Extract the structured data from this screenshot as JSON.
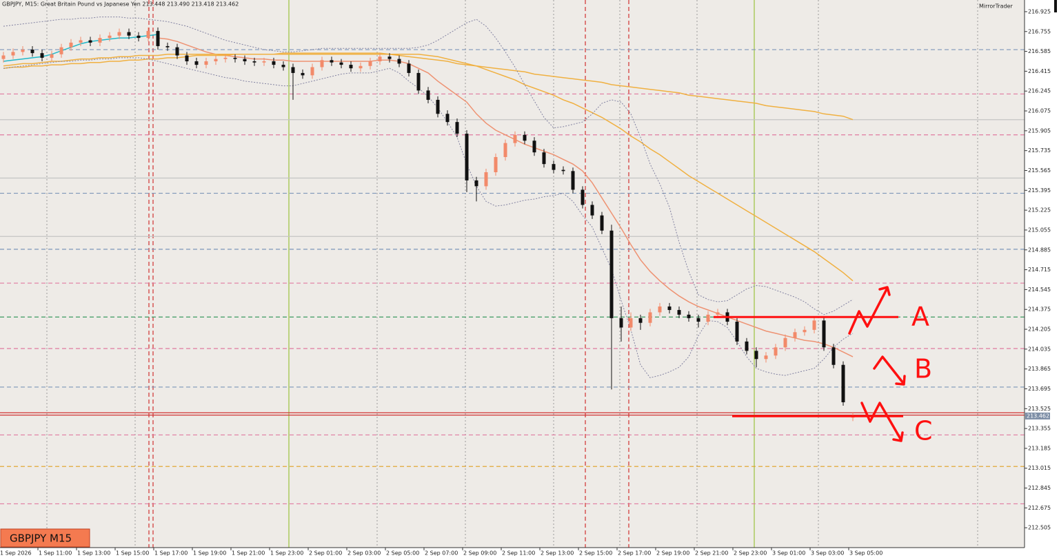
{
  "chart_data": {
    "type": "candlestick",
    "title": "GBPJPY, M15:  Great Britain Pound vs Japanese Yen  213.448 213.490 213.418 213.462",
    "brand": "MirrorTrader",
    "symbol_label": "GBPJPY M15",
    "categories": [
      "1 Sep 2026",
      null,
      null,
      null,
      "1 Sep 11:00",
      null,
      null,
      null,
      "1 Sep 13:00",
      null,
      null,
      null,
      "1 Sep 15:00",
      null,
      null,
      null,
      "1 Sep 17:00",
      null,
      null,
      null,
      "1 Sep 19:00",
      null,
      null,
      null,
      "1 Sep 21:00",
      null,
      null,
      null,
      "1 Sep 23:00",
      null,
      null,
      null,
      "2 Sep 01:00",
      null,
      null,
      null,
      "2 Sep 03:00",
      null,
      null,
      null,
      "2 Sep 05:00",
      null,
      null,
      null,
      "2 Sep 07:00",
      null,
      null,
      null,
      "2 Sep 09:00",
      null,
      null,
      null,
      "2 Sep 11:00",
      null,
      null,
      null,
      "2 Sep 13:00",
      null,
      null,
      null,
      "2 Sep 15:00",
      null,
      null,
      null,
      "2 Sep 17:00",
      null,
      null,
      null,
      "2 Sep 19:00",
      null,
      null,
      null,
      "2 Sep 21:00",
      null,
      null,
      null,
      "2 Sep 23:00",
      null,
      null,
      null,
      "3 Sep 01:00",
      null,
      null,
      null,
      "3 Sep 03:00",
      null,
      null,
      null,
      "3 Sep 05:00"
    ],
    "open": [
      216.52,
      216.55,
      216.58,
      216.6,
      216.57,
      216.53,
      216.56,
      216.62,
      216.66,
      216.68,
      216.66,
      216.7,
      216.72,
      216.75,
      216.72,
      216.7,
      216.76,
      216.63,
      216.62,
      216.55,
      216.5,
      216.47,
      216.5,
      216.52,
      216.53,
      216.52,
      216.5,
      216.49,
      216.5,
      216.47,
      216.45,
      216.4,
      216.38,
      216.45,
      216.51,
      216.49,
      216.47,
      216.44,
      216.46,
      216.5,
      216.54,
      216.52,
      216.48,
      216.4,
      216.25,
      216.17,
      216.05,
      215.98,
      215.88,
      215.48,
      215.43,
      215.55,
      215.68,
      215.8,
      215.87,
      215.82,
      215.72,
      215.62,
      215.57,
      215.56,
      215.4,
      215.27,
      215.18,
      215.05,
      214.3,
      214.22,
      214.3,
      214.26,
      214.35,
      214.4,
      214.37,
      214.33,
      214.3,
      214.27,
      214.33,
      214.35,
      214.27,
      214.1,
      214.02,
      213.95,
      213.98,
      214.05,
      214.13,
      214.18,
      214.2,
      214.28,
      214.05,
      213.9,
      213.448
    ],
    "high": [
      216.58,
      216.61,
      216.63,
      216.63,
      216.6,
      216.59,
      216.65,
      216.69,
      216.71,
      216.71,
      216.73,
      216.75,
      216.78,
      216.78,
      216.75,
      216.79,
      216.79,
      216.66,
      216.65,
      216.58,
      216.53,
      216.53,
      216.55,
      216.56,
      216.56,
      216.55,
      216.53,
      216.53,
      216.53,
      216.5,
      216.48,
      216.43,
      216.48,
      216.54,
      216.54,
      216.52,
      216.5,
      216.49,
      216.53,
      216.57,
      216.57,
      216.55,
      216.51,
      216.43,
      216.28,
      216.2,
      216.08,
      216.01,
      215.91,
      215.51,
      215.58,
      215.71,
      215.83,
      215.9,
      215.9,
      215.85,
      215.75,
      215.65,
      215.6,
      215.59,
      215.43,
      215.3,
      215.21,
      215.1,
      214.4,
      214.35,
      214.33,
      214.38,
      214.43,
      214.43,
      214.4,
      214.36,
      214.33,
      214.36,
      214.38,
      214.38,
      214.3,
      214.13,
      214.05,
      214.01,
      214.08,
      214.16,
      214.21,
      214.23,
      214.31,
      214.31,
      214.08,
      213.93,
      213.49
    ],
    "low": [
      216.49,
      216.52,
      216.55,
      216.54,
      216.5,
      216.5,
      216.53,
      216.59,
      216.63,
      216.63,
      216.63,
      216.67,
      216.69,
      216.69,
      216.67,
      216.67,
      216.6,
      216.59,
      216.52,
      216.47,
      216.44,
      216.44,
      216.47,
      216.49,
      216.49,
      216.47,
      216.46,
      216.46,
      216.44,
      216.42,
      216.17,
      216.35,
      216.35,
      216.42,
      216.46,
      216.44,
      216.41,
      216.41,
      216.43,
      216.47,
      216.49,
      216.45,
      216.37,
      216.22,
      216.14,
      216.02,
      215.95,
      215.85,
      215.38,
      215.3,
      215.4,
      215.52,
      215.65,
      215.77,
      215.79,
      215.69,
      215.59,
      215.54,
      215.53,
      215.37,
      215.24,
      215.15,
      215.02,
      213.69,
      214.1,
      214.19,
      214.2,
      214.23,
      214.32,
      214.34,
      214.3,
      214.27,
      214.22,
      214.24,
      214.3,
      214.24,
      214.07,
      213.99,
      213.88,
      213.92,
      213.95,
      214.02,
      214.1,
      214.15,
      214.17,
      214.02,
      213.87,
      213.55,
      213.418
    ],
    "close": [
      216.55,
      216.58,
      216.6,
      216.57,
      216.53,
      216.56,
      216.62,
      216.66,
      216.68,
      216.66,
      216.7,
      216.72,
      216.75,
      216.72,
      216.7,
      216.76,
      216.63,
      216.62,
      216.55,
      216.5,
      216.47,
      216.5,
      216.52,
      216.53,
      216.52,
      216.5,
      216.49,
      216.5,
      216.47,
      216.45,
      216.4,
      216.38,
      216.45,
      216.51,
      216.49,
      216.47,
      216.44,
      216.46,
      216.5,
      216.54,
      216.52,
      216.48,
      216.4,
      216.25,
      216.17,
      216.05,
      215.98,
      215.88,
      215.48,
      215.43,
      215.55,
      215.68,
      215.8,
      215.87,
      215.82,
      215.72,
      215.62,
      215.57,
      215.56,
      215.4,
      215.27,
      215.18,
      215.05,
      214.3,
      214.22,
      214.3,
      214.26,
      214.35,
      214.4,
      214.37,
      214.33,
      214.3,
      214.27,
      214.33,
      214.35,
      214.27,
      214.1,
      214.02,
      213.95,
      213.98,
      214.05,
      214.13,
      214.18,
      214.2,
      214.28,
      214.05,
      213.9,
      213.58,
      213.462
    ],
    "up_color": "#f28a6a",
    "down_color": "#111111",
    "overlays": [
      {
        "color": "#20b8c8",
        "style": "solid",
        "values": [
          216.5,
          216.51,
          216.52,
          216.53,
          216.54,
          216.56,
          216.59,
          216.62,
          216.65,
          216.67,
          216.68,
          216.69,
          216.7,
          216.7,
          216.71,
          216.72,
          216.73,
          null,
          null,
          null,
          null,
          null,
          null,
          null,
          null,
          null,
          null,
          null,
          null,
          null,
          null,
          null,
          null,
          null,
          null,
          null,
          null,
          null,
          null,
          null,
          null,
          null,
          null,
          null,
          null,
          null,
          null,
          null,
          null,
          null,
          null,
          null,
          null,
          null,
          null,
          null,
          null,
          null,
          null,
          null,
          null,
          null,
          null,
          null,
          null,
          null,
          null,
          null,
          null,
          null,
          null,
          null,
          null,
          null,
          null,
          null,
          null,
          null,
          null,
          null,
          null,
          null,
          null,
          null,
          null,
          null,
          null,
          null,
          null
        ]
      },
      {
        "color": "#ee9272",
        "style": "solid",
        "values": [
          null,
          null,
          null,
          null,
          null,
          null,
          null,
          null,
          null,
          null,
          null,
          null,
          null,
          null,
          null,
          null,
          216.7,
          216.69,
          216.67,
          216.64,
          216.61,
          216.58,
          216.56,
          216.55,
          216.54,
          216.53,
          216.52,
          216.52,
          216.51,
          216.51,
          216.5,
          216.5,
          216.5,
          216.5,
          216.5,
          216.5,
          216.5,
          216.5,
          216.5,
          216.51,
          216.51,
          216.5,
          216.48,
          216.44,
          216.4,
          216.33,
          216.27,
          216.21,
          216.15,
          216.05,
          215.97,
          215.91,
          215.87,
          215.83,
          215.79,
          215.76,
          215.73,
          215.7,
          215.66,
          215.62,
          215.56,
          215.46,
          215.33,
          215.2,
          215.07,
          214.93,
          214.8,
          214.7,
          214.62,
          214.55,
          214.49,
          214.44,
          214.4,
          214.37,
          214.34,
          214.31,
          214.28,
          214.25,
          214.22,
          214.19,
          214.17,
          214.15,
          214.13,
          214.11,
          214.1,
          214.08,
          214.05,
          214.01,
          213.97
        ]
      },
      {
        "color": "#f0b040",
        "style": "solid",
        "values": [
          216.46,
          216.47,
          216.48,
          216.48,
          216.49,
          216.5,
          216.5,
          216.51,
          216.52,
          216.52,
          216.53,
          216.53,
          216.54,
          216.54,
          216.55,
          216.55,
          216.55,
          216.56,
          216.56,
          216.56,
          216.56,
          216.56,
          216.56,
          216.56,
          216.56,
          216.56,
          216.56,
          216.56,
          216.56,
          216.56,
          216.56,
          216.56,
          216.56,
          216.56,
          216.56,
          216.56,
          216.56,
          216.56,
          216.56,
          216.56,
          216.56,
          216.56,
          216.56,
          216.56,
          216.55,
          216.54,
          216.52,
          216.5,
          216.48,
          216.46,
          216.43,
          216.4,
          216.37,
          216.34,
          216.3,
          216.27,
          216.24,
          216.21,
          216.17,
          216.14,
          216.1,
          216.06,
          216.02,
          215.97,
          215.92,
          215.86,
          215.81,
          215.75,
          215.7,
          215.64,
          215.58,
          215.52,
          215.47,
          215.42,
          215.37,
          215.32,
          215.27,
          215.22,
          215.17,
          215.12,
          215.07,
          215.02,
          214.97,
          214.92,
          214.87,
          214.81,
          214.75,
          214.69,
          214.62
        ]
      },
      {
        "color": "#f0b040",
        "style": "solid",
        "values": [
          216.44,
          216.45,
          216.45,
          216.46,
          216.46,
          216.47,
          216.47,
          216.48,
          216.48,
          216.49,
          216.49,
          216.5,
          216.5,
          216.51,
          216.51,
          216.52,
          216.52,
          216.53,
          216.53,
          216.54,
          216.55,
          216.55,
          216.55,
          216.55,
          216.56,
          216.56,
          216.56,
          216.56,
          216.56,
          216.57,
          216.57,
          216.57,
          216.57,
          216.57,
          216.57,
          216.57,
          216.57,
          216.57,
          216.57,
          216.57,
          216.56,
          216.55,
          216.54,
          216.53,
          216.52,
          216.51,
          216.5,
          216.48,
          216.47,
          216.46,
          216.45,
          216.44,
          216.43,
          216.42,
          216.41,
          216.39,
          216.38,
          216.37,
          216.36,
          216.35,
          216.34,
          216.33,
          216.32,
          216.3,
          216.29,
          216.28,
          216.27,
          216.26,
          216.25,
          216.24,
          216.23,
          216.21,
          216.2,
          216.19,
          216.18,
          216.17,
          216.16,
          216.15,
          216.14,
          216.12,
          216.11,
          216.1,
          216.09,
          216.08,
          216.07,
          216.05,
          216.04,
          216.03,
          216.0
        ]
      },
      {
        "color": "#8080a0",
        "style": "dotted",
        "values": [
          216.8,
          216.81,
          216.82,
          216.83,
          216.84,
          216.85,
          216.86,
          216.86,
          216.87,
          216.87,
          216.88,
          216.88,
          216.88,
          216.87,
          216.87,
          216.86,
          216.85,
          216.84,
          216.82,
          216.8,
          216.77,
          216.74,
          216.71,
          216.68,
          216.66,
          216.64,
          216.62,
          216.6,
          216.59,
          216.58,
          216.58,
          216.59,
          216.6,
          216.61,
          216.61,
          216.61,
          216.61,
          216.61,
          216.61,
          216.61,
          216.61,
          216.61,
          216.61,
          216.62,
          216.64,
          216.68,
          216.73,
          216.78,
          216.83,
          216.86,
          216.8,
          216.7,
          216.58,
          216.45,
          216.3,
          216.16,
          216.02,
          215.93,
          215.94,
          215.96,
          215.98,
          216.05,
          216.14,
          216.17,
          216.15,
          216.05,
          215.85,
          215.62,
          215.45,
          215.25,
          214.95,
          214.7,
          214.5,
          214.46,
          214.44,
          214.45,
          214.5,
          214.55,
          214.58,
          214.57,
          214.54,
          214.51,
          214.48,
          214.44,
          214.38,
          214.33,
          214.36,
          214.41,
          214.46
        ]
      },
      {
        "color": "#8080a0",
        "style": "dotted",
        "values": [
          216.44,
          216.45,
          216.46,
          216.47,
          216.48,
          216.49,
          216.5,
          216.5,
          216.51,
          216.51,
          216.52,
          216.52,
          216.53,
          216.53,
          216.53,
          216.52,
          216.5,
          216.48,
          216.46,
          216.44,
          216.42,
          216.4,
          216.38,
          216.36,
          216.35,
          216.33,
          216.32,
          216.31,
          216.3,
          216.29,
          216.29,
          216.31,
          216.33,
          216.35,
          216.37,
          216.39,
          216.4,
          216.4,
          216.4,
          216.42,
          216.44,
          216.4,
          216.33,
          216.27,
          216.2,
          216.1,
          215.98,
          215.85,
          215.62,
          215.43,
          215.3,
          215.26,
          215.27,
          215.29,
          215.31,
          215.32,
          215.34,
          215.35,
          215.37,
          215.3,
          215.18,
          215.08,
          214.9,
          214.72,
          214.45,
          214.2,
          213.9,
          213.79,
          213.81,
          213.84,
          213.88,
          213.97,
          214.15,
          214.28,
          214.27,
          214.22,
          214.1,
          213.97,
          213.87,
          213.84,
          213.82,
          213.81,
          213.83,
          213.85,
          213.87,
          213.95,
          214.05,
          214.12,
          214.17
        ]
      }
    ],
    "levels": [
      {
        "value": 216.6,
        "color": "#7c96b8",
        "style": "dashed"
      },
      {
        "value": 216.22,
        "color": "#e07aa0",
        "style": "dashed"
      },
      {
        "value": 216.0,
        "color": "#c4c4c4",
        "style": "solid"
      },
      {
        "value": 215.87,
        "color": "#e07aa0",
        "style": "dashed"
      },
      {
        "value": 215.5,
        "color": "#c4c4c4",
        "style": "solid"
      },
      {
        "value": 215.37,
        "color": "#7c96b8",
        "style": "dashed"
      },
      {
        "value": 215.0,
        "color": "#c4c4c4",
        "style": "solid"
      },
      {
        "value": 214.89,
        "color": "#7c96b8",
        "style": "dashed"
      },
      {
        "value": 214.6,
        "color": "#e07aa0",
        "style": "dashed"
      },
      {
        "value": 214.31,
        "color": "#3a9a60",
        "style": "dashed"
      },
      {
        "value": 214.04,
        "color": "#e07aa0",
        "style": "dashed"
      },
      {
        "value": 213.71,
        "color": "#7c96b8",
        "style": "dashed"
      },
      {
        "value": 213.49,
        "color": "#d03030",
        "style": "solid"
      },
      {
        "value": 213.47,
        "color": "#d03030",
        "style": "solid"
      },
      {
        "value": 213.3,
        "color": "#e07aa0",
        "style": "dashed"
      },
      {
        "value": 213.03,
        "color": "#e0a020",
        "style": "dashed"
      },
      {
        "value": 212.71,
        "color": "#e07aa0",
        "style": "dashed"
      }
    ],
    "annotations": [
      {
        "label": "A",
        "value": 214.31
      },
      {
        "label": "B"
      },
      {
        "label": "C",
        "value": 213.46
      }
    ],
    "ylim": [
      212.335,
      217.025
    ],
    "yticks": [
      216.925,
      216.755,
      216.585,
      216.415,
      216.245,
      216.075,
      215.905,
      215.735,
      215.565,
      215.395,
      215.225,
      215.055,
      214.885,
      214.715,
      214.545,
      214.375,
      214.205,
      214.035,
      213.865,
      213.695,
      213.525,
      213.355,
      213.185,
      213.015,
      212.845,
      212.675,
      212.505
    ],
    "grid": true
  }
}
